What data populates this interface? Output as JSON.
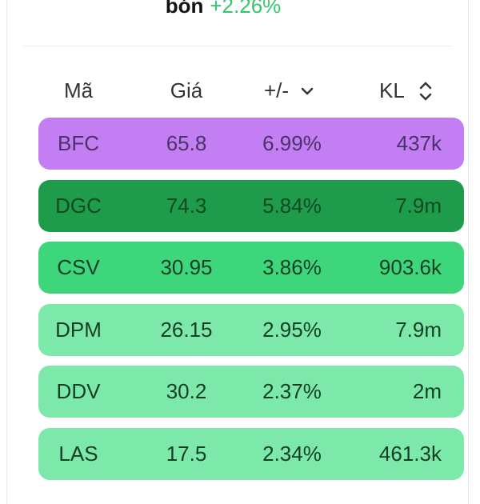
{
  "header": {
    "title": "bón",
    "change": "+2.26%"
  },
  "table": {
    "columns": [
      "Mã",
      "Giá",
      "+/-",
      "KL"
    ],
    "rows": [
      [
        "BFC",
        "65.8",
        "6.99%",
        "437k"
      ],
      [
        "DGC",
        "74.3",
        "5.84%",
        "7.9m"
      ],
      [
        "CSV",
        "30.95",
        "3.86%",
        "903.6k"
      ],
      [
        "DPM",
        "26.15",
        "2.95%",
        "7.9m"
      ],
      [
        "DDV",
        "30.2",
        "2.37%",
        "2m"
      ],
      [
        "LAS",
        "17.5",
        "2.34%",
        "461.3k"
      ]
    ]
  }
}
